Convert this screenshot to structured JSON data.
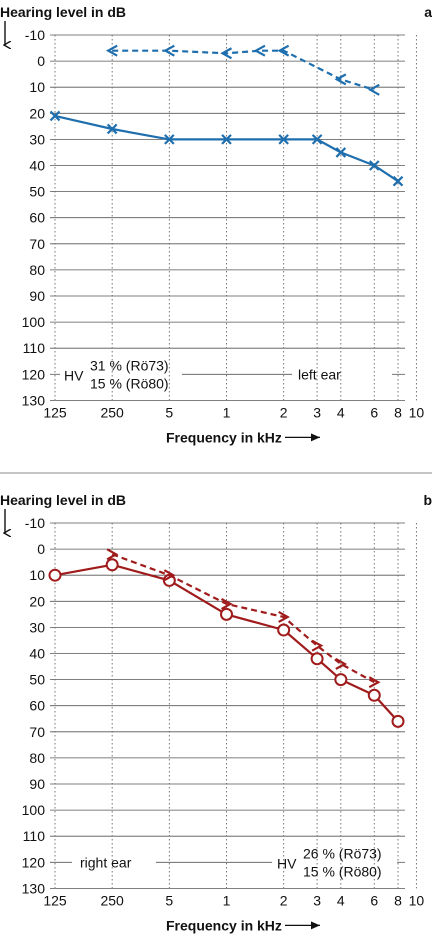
{
  "chart_data": [
    {
      "type": "line",
      "panel_label": "a",
      "ylabel": "Hearing level in dB",
      "xlabel": "Frequency in kHz",
      "y_ticks": [
        -10,
        0,
        10,
        20,
        30,
        40,
        50,
        60,
        70,
        80,
        90,
        100,
        110,
        120,
        130
      ],
      "ylim": [
        -10,
        130
      ],
      "y_inverted": true,
      "x_tick_labels": [
        "125",
        "250",
        "5",
        "1",
        "2",
        "3",
        "4",
        "6",
        "8",
        "10"
      ],
      "x_tick_hz": [
        125,
        250,
        500,
        1000,
        2000,
        3000,
        4000,
        6000,
        8000,
        10000
      ],
      "x_scale": "log",
      "grid": true,
      "color": "#1f6fae",
      "ear_label": "left ear",
      "hv_prefix": "HV",
      "hv_line1": "31 % (Rö73)",
      "hv_line2": "15 % (Rö80)",
      "series": [
        {
          "style": "solid",
          "marker": "x",
          "x": [
            125,
            250,
            500,
            1000,
            2000,
            3000,
            4000,
            6000,
            8000
          ],
          "values": [
            21,
            26,
            30,
            30,
            30,
            30,
            35,
            40,
            46
          ]
        },
        {
          "style": "dashed",
          "marker": "<",
          "x": [
            250,
            500,
            1000,
            1500,
            2000,
            4000,
            6000
          ],
          "values": [
            -4,
            -4,
            -3,
            -4,
            -4,
            7,
            11
          ]
        }
      ]
    },
    {
      "type": "line",
      "panel_label": "b",
      "ylabel": "Hearing level in dB",
      "xlabel": "Frequency in kHz",
      "y_ticks": [
        -10,
        0,
        10,
        20,
        30,
        40,
        50,
        60,
        70,
        80,
        90,
        100,
        110,
        120,
        130
      ],
      "ylim": [
        -10,
        130
      ],
      "y_inverted": true,
      "x_tick_labels": [
        "125",
        "250",
        "5",
        "1",
        "2",
        "3",
        "4",
        "6",
        "8",
        "10"
      ],
      "x_tick_hz": [
        125,
        250,
        500,
        1000,
        2000,
        3000,
        4000,
        6000,
        8000,
        10000
      ],
      "x_scale": "log",
      "grid": true,
      "color": "#a01c1c",
      "ear_label": "right ear",
      "hv_prefix": "HV",
      "hv_line1": "26 % (Rö73)",
      "hv_line2": "15 % (Rö80)",
      "series": [
        {
          "style": "solid",
          "marker": "o",
          "x": [
            125,
            250,
            500,
            1000,
            2000,
            3000,
            4000,
            6000,
            8000
          ],
          "values": [
            10,
            6,
            12,
            25,
            31,
            42,
            50,
            56,
            66
          ]
        },
        {
          "style": "dashed",
          "marker": ">",
          "x": [
            250,
            500,
            1000,
            2000,
            3000,
            4000,
            6000
          ],
          "values": [
            2,
            10,
            21,
            26,
            37,
            44,
            51
          ]
        }
      ]
    }
  ]
}
